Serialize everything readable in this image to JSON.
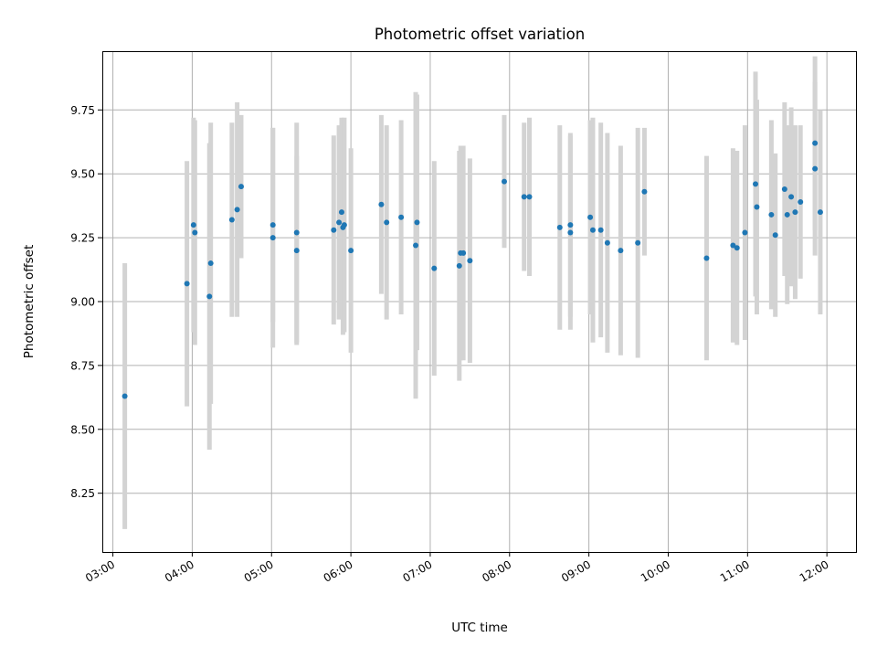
{
  "chart_data": {
    "type": "scatter",
    "title": "Photometric offset variation",
    "xlabel": "UTC time",
    "ylabel": "Photometric offset",
    "xlim": [
      "02:52",
      "12:22"
    ],
    "ylim": [
      8.02,
      9.98
    ],
    "grid": true,
    "x_ticks": [
      "03:00",
      "04:00",
      "05:00",
      "06:00",
      "07:00",
      "08:00",
      "09:00",
      "10:00",
      "11:00",
      "12:00"
    ],
    "y_ticks": [
      8.25,
      8.5,
      8.75,
      9.0,
      9.25,
      9.5,
      9.75
    ],
    "y_tick_labels": [
      "8.25",
      "8.50",
      "8.75",
      "9.00",
      "9.25",
      "9.50",
      "9.75"
    ],
    "series": [
      {
        "marker": "circle",
        "errorbar_color": "#d3d3d3",
        "x": [
          "03:09",
          "03:56",
          "04:01",
          "04:02",
          "04:13",
          "04:14",
          "04:30",
          "04:34",
          "04:37",
          "05:01",
          "05:01",
          "05:19",
          "05:19",
          "05:47",
          "05:51",
          "05:53",
          "05:54",
          "05:55",
          "06:00",
          "06:23",
          "06:27",
          "06:38",
          "06:49",
          "06:50",
          "07:03",
          "07:22",
          "07:23",
          "07:25",
          "07:30",
          "07:56",
          "08:11",
          "08:15",
          "08:38",
          "08:46",
          "08:46",
          "09:01",
          "09:03",
          "09:09",
          "09:14",
          "09:24",
          "09:37",
          "09:42",
          "10:29",
          "10:49",
          "10:52",
          "10:58",
          "11:06",
          "11:07",
          "11:18",
          "11:21",
          "11:28",
          "11:30",
          "11:33",
          "11:36",
          "11:40",
          "11:51",
          "11:51",
          "11:55"
        ],
        "y": [
          8.63,
          9.07,
          9.3,
          9.27,
          9.02,
          9.15,
          9.32,
          9.36,
          9.45,
          9.3,
          9.25,
          9.2,
          9.27,
          9.28,
          9.31,
          9.35,
          9.29,
          9.3,
          9.2,
          9.38,
          9.31,
          9.33,
          9.22,
          9.31,
          9.13,
          9.14,
          9.19,
          9.19,
          9.16,
          9.47,
          9.41,
          9.41,
          9.29,
          9.27,
          9.3,
          9.33,
          9.28,
          9.28,
          9.23,
          9.2,
          9.23,
          9.43,
          9.17,
          9.22,
          9.21,
          9.27,
          9.46,
          9.37,
          9.34,
          9.26,
          9.44,
          9.34,
          9.41,
          9.35,
          9.39,
          9.62,
          9.52,
          9.35
        ],
        "yerr": [
          0.52,
          0.48,
          0.42,
          0.44,
          0.6,
          0.55,
          0.38,
          0.42,
          0.28,
          0.38,
          0.43,
          0.37,
          0.43,
          0.37,
          0.38,
          0.37,
          0.42,
          0.42,
          0.4,
          0.35,
          0.38,
          0.38,
          0.6,
          0.5,
          0.42,
          0.45,
          0.42,
          0.42,
          0.4,
          0.26,
          0.29,
          0.31,
          0.4,
          0.38,
          0.36,
          0.38,
          0.44,
          0.42,
          0.43,
          0.41,
          0.45,
          0.25,
          0.4,
          0.38,
          0.38,
          0.42,
          0.44,
          0.42,
          0.37,
          0.32,
          0.34,
          0.35,
          0.35,
          0.34,
          0.3,
          0.34,
          0.34,
          0.4
        ]
      }
    ]
  }
}
